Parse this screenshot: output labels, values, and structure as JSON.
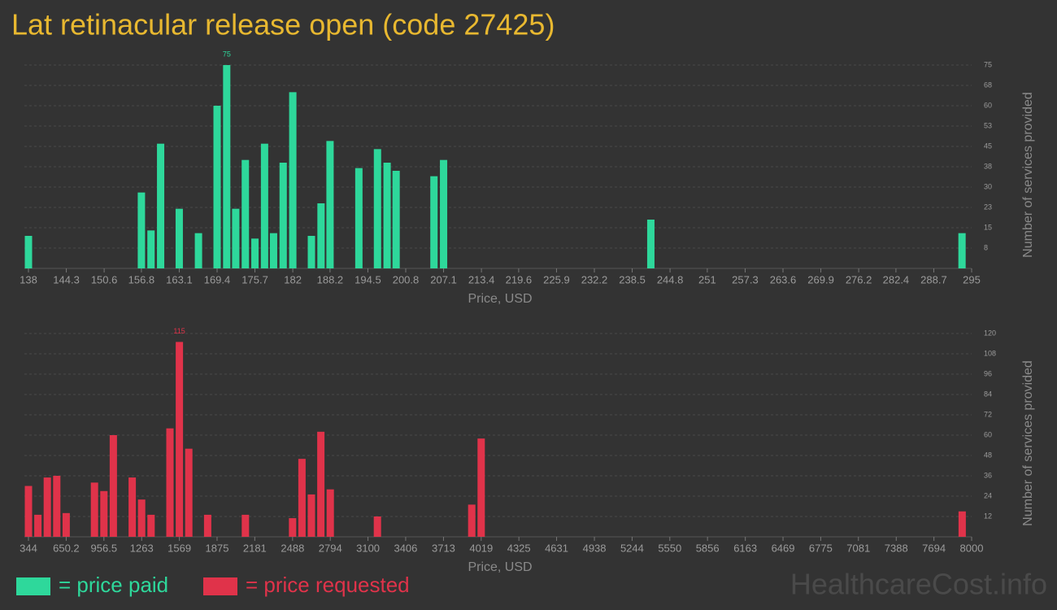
{
  "title": "Lat retinacular release open (code 27425)",
  "watermark": "HealthcareCost.info",
  "chart_data": [
    {
      "type": "bar",
      "name": "= price paid",
      "color": "#2ed89b",
      "xlabel": "Price, USD",
      "ylabel": "Number of services provided",
      "grid": true,
      "x": [
        138,
        156.8,
        158.4,
        160.0,
        163.1,
        166.3,
        169.4,
        171.0,
        172.5,
        174.1,
        175.7,
        177.3,
        178.8,
        180.4,
        182.0,
        185.1,
        186.7,
        188.2,
        193.0,
        196.1,
        197.7,
        199.2,
        205.5,
        207.1,
        241.6,
        293.4
      ],
      "values": [
        12,
        28,
        14,
        46,
        22,
        13,
        60,
        75,
        22,
        40,
        11,
        46,
        13,
        39,
        65,
        12,
        24,
        47,
        37,
        44,
        39,
        36,
        34,
        40,
        18,
        13
      ],
      "xlim": [
        138,
        295
      ],
      "xticks": [
        138,
        144.3,
        150.6,
        156.8,
        163.1,
        169.4,
        175.7,
        182,
        188.2,
        194.5,
        200.8,
        207.1,
        213.4,
        219.6,
        225.9,
        232.2,
        238.5,
        244.8,
        251,
        257.3,
        263.6,
        269.9,
        276.2,
        282.4,
        288.7,
        295
      ],
      "ylim": [
        0,
        75
      ],
      "yticks": [
        {
          "value": 7.5,
          "label": "8"
        },
        15,
        {
          "value": 22.5,
          "label": "23"
        },
        30,
        {
          "value": 37.5,
          "label": "38"
        },
        45,
        {
          "value": 52.5,
          "label": "53"
        },
        60,
        {
          "value": 67.5,
          "label": "68"
        },
        75
      ]
    },
    {
      "type": "bar",
      "name": "= price requested",
      "color": "#e0334a",
      "xlabel": "Price, USD",
      "ylabel": "Number of services provided",
      "grid": true,
      "x": [
        344,
        420.6,
        497.1,
        573.7,
        650.2,
        879.9,
        956.5,
        1033.0,
        1186.2,
        1262.7,
        1339.3,
        1492.4,
        1569.0,
        1645.5,
        1798.6,
        2104.9,
        2487.7,
        2564.2,
        2640.8,
        2717.4,
        2793.9,
        3176.7,
        3942.3,
        4018.9,
        7923.4
      ],
      "values": [
        30,
        13,
        35,
        36,
        14,
        32,
        27,
        60,
        35,
        22,
        13,
        64,
        115,
        52,
        13,
        13,
        11,
        46,
        25,
        62,
        28,
        12,
        19,
        58,
        15
      ],
      "xlim": [
        344,
        8000
      ],
      "xticks": [
        344,
        650.2,
        956.5,
        1263,
        1569,
        1875,
        2181,
        2488,
        2794,
        3100,
        3406,
        3713,
        4019,
        4325,
        4631,
        4938,
        5244,
        5550,
        5856,
        6163,
        6469,
        6775,
        7081,
        7388,
        7694,
        8000
      ],
      "ylim": [
        0,
        120
      ],
      "yticks": [
        12,
        24,
        36,
        48,
        60,
        72,
        84,
        96,
        108,
        120
      ]
    }
  ]
}
